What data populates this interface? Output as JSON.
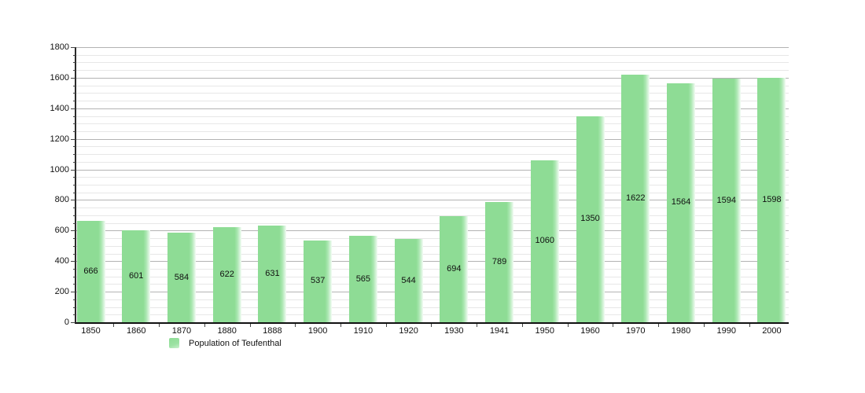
{
  "chart_data": {
    "type": "bar",
    "title": "",
    "xlabel": "",
    "ylabel": "",
    "categories": [
      "1850",
      "1860",
      "1870",
      "1880",
      "1888",
      "1900",
      "1910",
      "1920",
      "1930",
      "1941",
      "1950",
      "1960",
      "1970",
      "1980",
      "1990",
      "2000"
    ],
    "series": [
      {
        "name": "Population of Teufenthal",
        "values": [
          666,
          601,
          584,
          622,
          631,
          537,
          565,
          544,
          694,
          789,
          1060,
          1350,
          1622,
          1564,
          1594,
          1598
        ]
      }
    ],
    "ylim": [
      0,
      1800
    ],
    "yticks": [
      0,
      200,
      400,
      600,
      800,
      1000,
      1200,
      1400,
      1600,
      1800
    ],
    "ytick_step": 200,
    "yminor_step": 50,
    "grid": "horizontal major and minor gridlines",
    "value_labels": "centered inside bars",
    "legend_position": "bottom-left"
  },
  "legend": {
    "label": "Population of Teufenthal"
  },
  "colors": {
    "bar": "#8edc95",
    "grid_major": "#b3b3b3",
    "grid_minor": "#e7e7e7",
    "axis": "#111111",
    "text": "#111111",
    "background": "#ffffff"
  }
}
